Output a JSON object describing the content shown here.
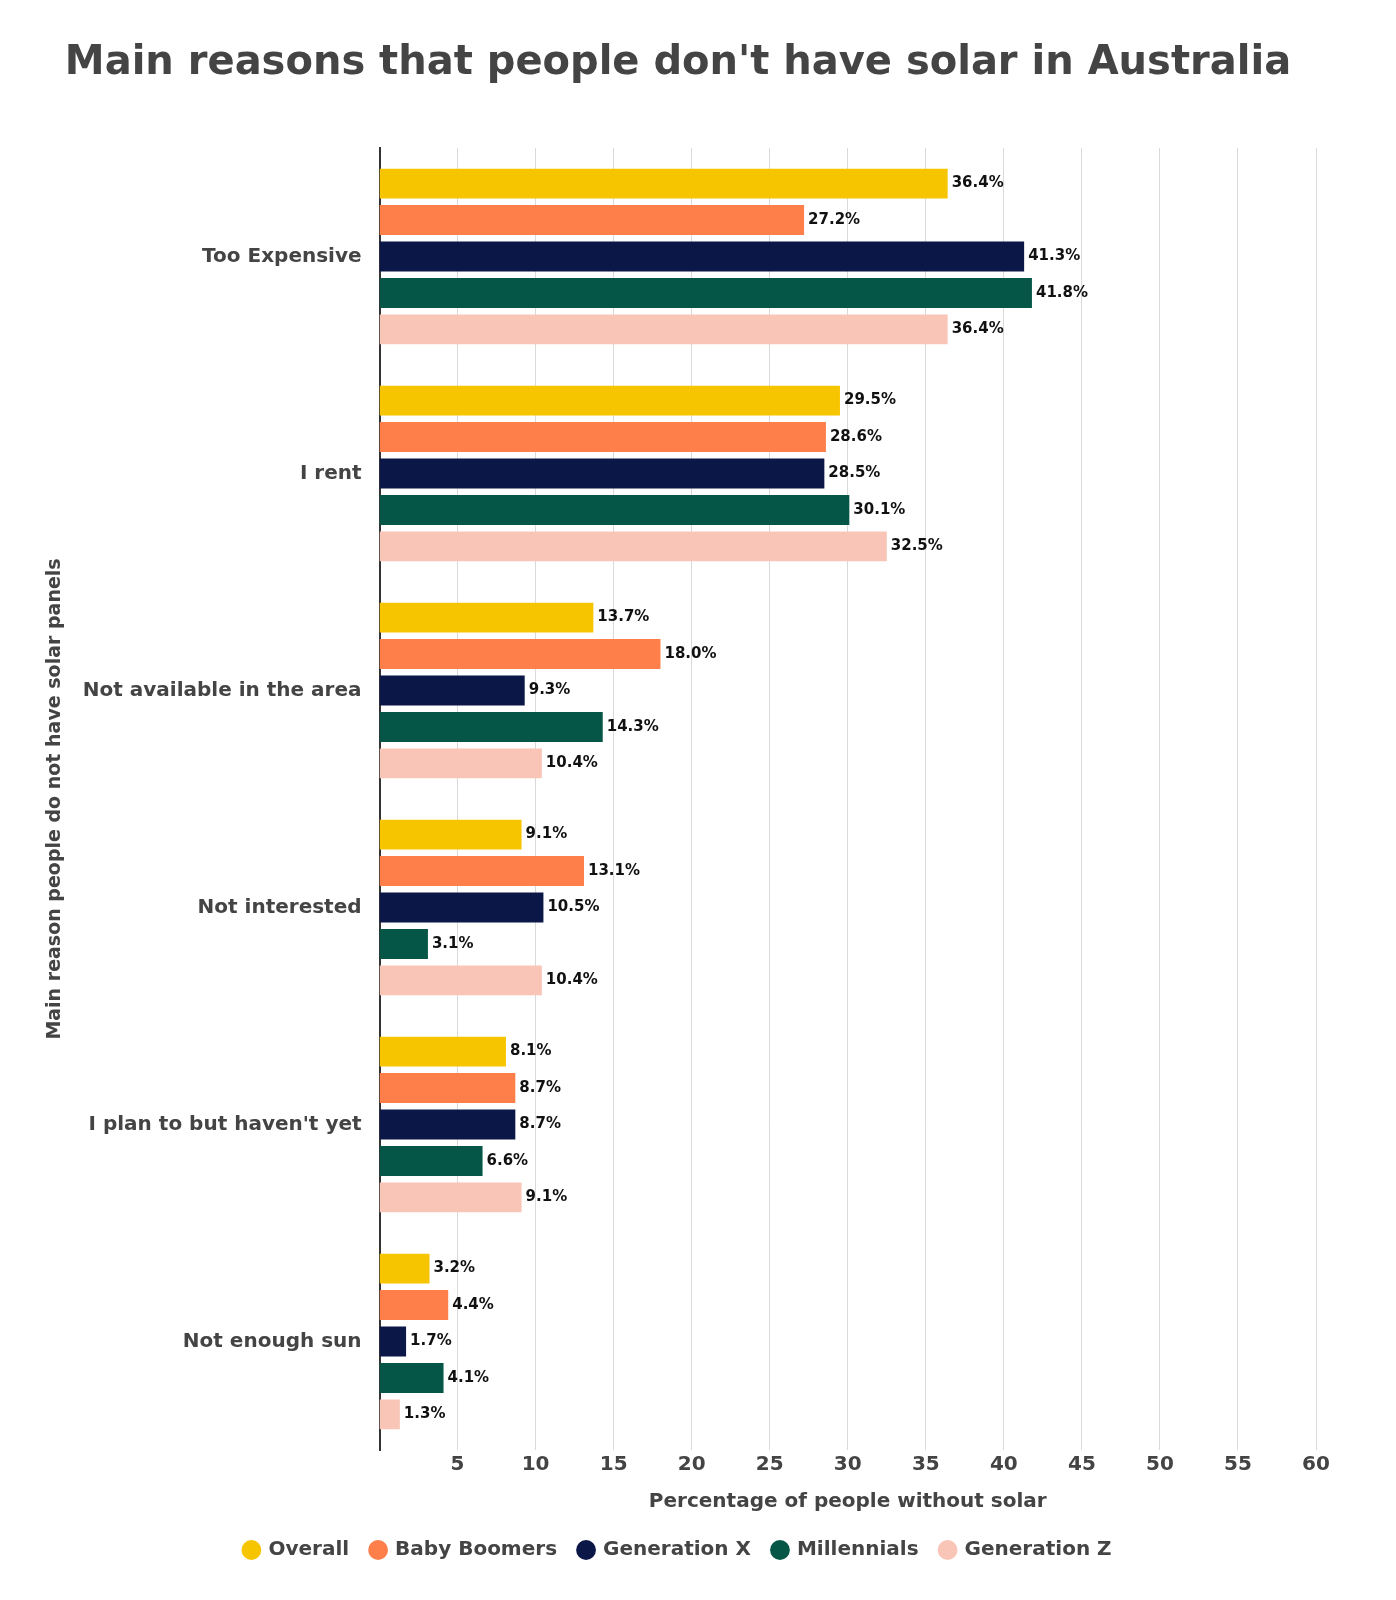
{
  "chart_data": {
    "type": "bar",
    "orientation": "horizontal",
    "title": "Main reasons that people don't have solar in Australia",
    "x_label": "Percentage of people without solar",
    "y_label": "Main reason people do not have solar panels",
    "categories": [
      "Too Expensive",
      "I rent",
      "Not available in the area",
      "Not interested",
      "I plan to but haven't yet",
      "Not enough sun"
    ],
    "series": [
      {
        "name": "Overall",
        "color": "#f7c500",
        "values": [
          36.4,
          29.5,
          13.7,
          9.1,
          8.1,
          3.2
        ],
        "value_labels": [
          "36.4%",
          "29.5%",
          "13.7%",
          "9.1%",
          "8.1%",
          "3.2%"
        ]
      },
      {
        "name": "Baby Boomers",
        "color": "#ff7f4a",
        "values": [
          27.2,
          28.6,
          18.0,
          13.1,
          8.7,
          4.4
        ],
        "value_labels": [
          "27.2%",
          "28.6%",
          "18.0%",
          "13.1%",
          "8.7%",
          "4.4%"
        ]
      },
      {
        "name": "Generation X",
        "color": "#0b1746",
        "values": [
          41.3,
          28.5,
          9.3,
          10.5,
          8.7,
          1.7
        ],
        "value_labels": [
          "41.3%",
          "28.5%",
          "9.3%",
          "10.5%",
          "8.7%",
          "1.7%"
        ]
      },
      {
        "name": "Millennials",
        "color": "#055646",
        "values": [
          41.8,
          30.1,
          14.3,
          3.1,
          6.6,
          4.1
        ],
        "value_labels": [
          "41.8%",
          "30.1%",
          "14.3%",
          "3.1%",
          "6.6%",
          "4.1%"
        ]
      },
      {
        "name": "Generation Z",
        "color": "#f9c5b7",
        "values": [
          36.4,
          32.5,
          10.4,
          10.4,
          9.1,
          1.3
        ],
        "value_labels": [
          "36.4%",
          "32.5%",
          "10.4%",
          "10.4%",
          "9.1%",
          "1.3%"
        ]
      }
    ],
    "xlim": [
      0,
      60
    ],
    "xticks": [
      5,
      10,
      15,
      20,
      25,
      30,
      35,
      40,
      45,
      50,
      55,
      60
    ],
    "grid": true,
    "legend": "bottom",
    "data_labels": true
  }
}
